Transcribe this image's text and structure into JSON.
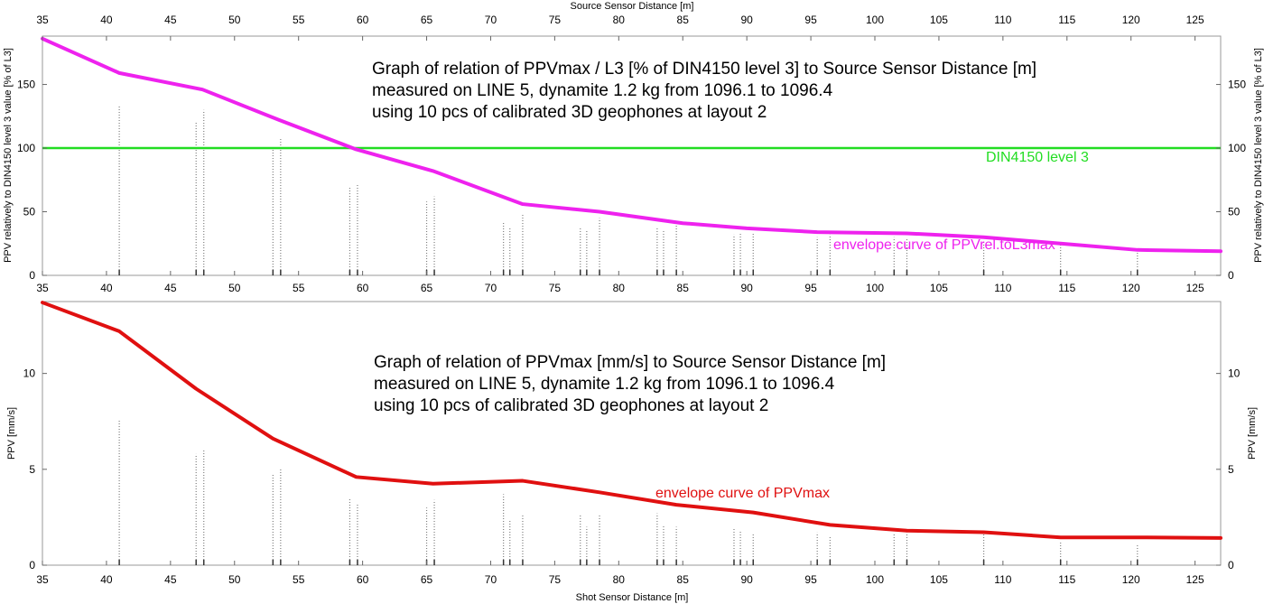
{
  "chart_data": [
    {
      "type": "line",
      "top_axis_label": "Source Sensor Distance [m]",
      "ylabel_left": "PPV relatively to DIN4150 level 3 value [% of L3]",
      "ylabel_right": "PPV relatively to DIN4150 level 3 value [% of L3]",
      "xlim": [
        35,
        127
      ],
      "ylim": [
        0,
        188
      ],
      "xticks": [
        35,
        40,
        45,
        50,
        55,
        60,
        65,
        70,
        75,
        80,
        85,
        90,
        95,
        100,
        105,
        110,
        115,
        120,
        125
      ],
      "yticks": [
        0,
        50,
        100,
        150
      ],
      "annotation_lines": [
        "Graph of relation of PPVmax / L3 [% of DIN4150 level 3] to Source Sensor Distance [m]",
        "measured on LINE 5, dynamite 1.2 kg from 1096.1 to 1096.4",
        "using 10 pcs of calibrated 3D geophones at layout 2"
      ],
      "reference_line": {
        "label": "DIN4150 level 3",
        "y": 100,
        "color": "#22dd22"
      },
      "series": [
        {
          "name": "envelope curve of PPVrel.toL3max",
          "color": "#ee22ee",
          "x": [
            35,
            41,
            47.5,
            53.5,
            59.5,
            65.5,
            72.5,
            78.5,
            85,
            90,
            95.5,
            102.5,
            108.5,
            114.5,
            120.5,
            127
          ],
          "y": [
            186,
            159,
            146,
            122,
            99,
            82,
            56,
            50,
            41,
            37,
            34,
            33,
            30,
            25,
            20,
            19
          ]
        }
      ],
      "sample_columns": {
        "color": "#555555",
        "x": [
          41,
          47,
          47.6,
          53,
          53.6,
          59,
          59.6,
          65,
          65.6,
          71,
          71.5,
          72.5,
          77,
          77.5,
          78.5,
          83,
          83.5,
          84.5,
          89,
          89.5,
          90.5,
          95.5,
          96.5,
          101.5,
          102.5,
          108.5,
          114.5,
          120.5
        ],
        "y": [
          133,
          120,
          130,
          102,
          108,
          70,
          72,
          58,
          62,
          42,
          38,
          48,
          38,
          36,
          45,
          38,
          36,
          40,
          32,
          34,
          33,
          30,
          32,
          30,
          29,
          26,
          24,
          18
        ]
      }
    },
    {
      "type": "line",
      "xlabel": "Shot Sensor Distance [m]",
      "ylabel_left": "PPV [mm/s]",
      "ylabel_right": "PPV [mm/s]",
      "xlim": [
        35,
        127
      ],
      "ylim": [
        0,
        13.75
      ],
      "xticks": [
        35,
        40,
        45,
        50,
        55,
        60,
        65,
        70,
        75,
        80,
        85,
        90,
        95,
        100,
        105,
        110,
        115,
        120,
        125
      ],
      "yticks": [
        0,
        5,
        10
      ],
      "annotation_lines": [
        "Graph of relation of PPVmax [mm/s] to Source Sensor Distance [m]",
        "measured on LINE 5, dynamite 1.2 kg from 1096.1 to 1096.4",
        "using 10 pcs of calibrated 3D geophones at layout 2"
      ],
      "series": [
        {
          "name": "envelope curve of PPVmax",
          "color": "#e01010",
          "x": [
            35,
            41,
            47,
            53,
            59.5,
            65.5,
            72.5,
            78.5,
            84.5,
            90.5,
            96.5,
            102.5,
            108.5,
            114.5,
            120.5,
            127
          ],
          "y": [
            13.7,
            12.2,
            9.2,
            6.6,
            4.6,
            4.25,
            4.4,
            3.8,
            3.15,
            2.75,
            2.1,
            1.8,
            1.72,
            1.45,
            1.45,
            1.42
          ]
        }
      ],
      "sample_columns": {
        "color": "#555555",
        "x": [
          41,
          47,
          47.6,
          53,
          53.6,
          59,
          59.6,
          65,
          65.6,
          71,
          71.5,
          72.5,
          77,
          77.5,
          78.5,
          83,
          83.5,
          84.5,
          89,
          89.5,
          90.5,
          95.5,
          96.5,
          101.5,
          102.5,
          108.5,
          114.5,
          120.5
        ],
        "y": [
          7.6,
          5.8,
          6.0,
          4.8,
          5.0,
          3.5,
          3.2,
          3.0,
          3.4,
          3.7,
          2.4,
          2.6,
          2.6,
          2.0,
          2.6,
          2.7,
          2.1,
          2.0,
          1.9,
          1.8,
          1.6,
          1.7,
          1.5,
          1.6,
          1.7,
          1.7,
          1.2,
          1.1
        ]
      }
    }
  ]
}
